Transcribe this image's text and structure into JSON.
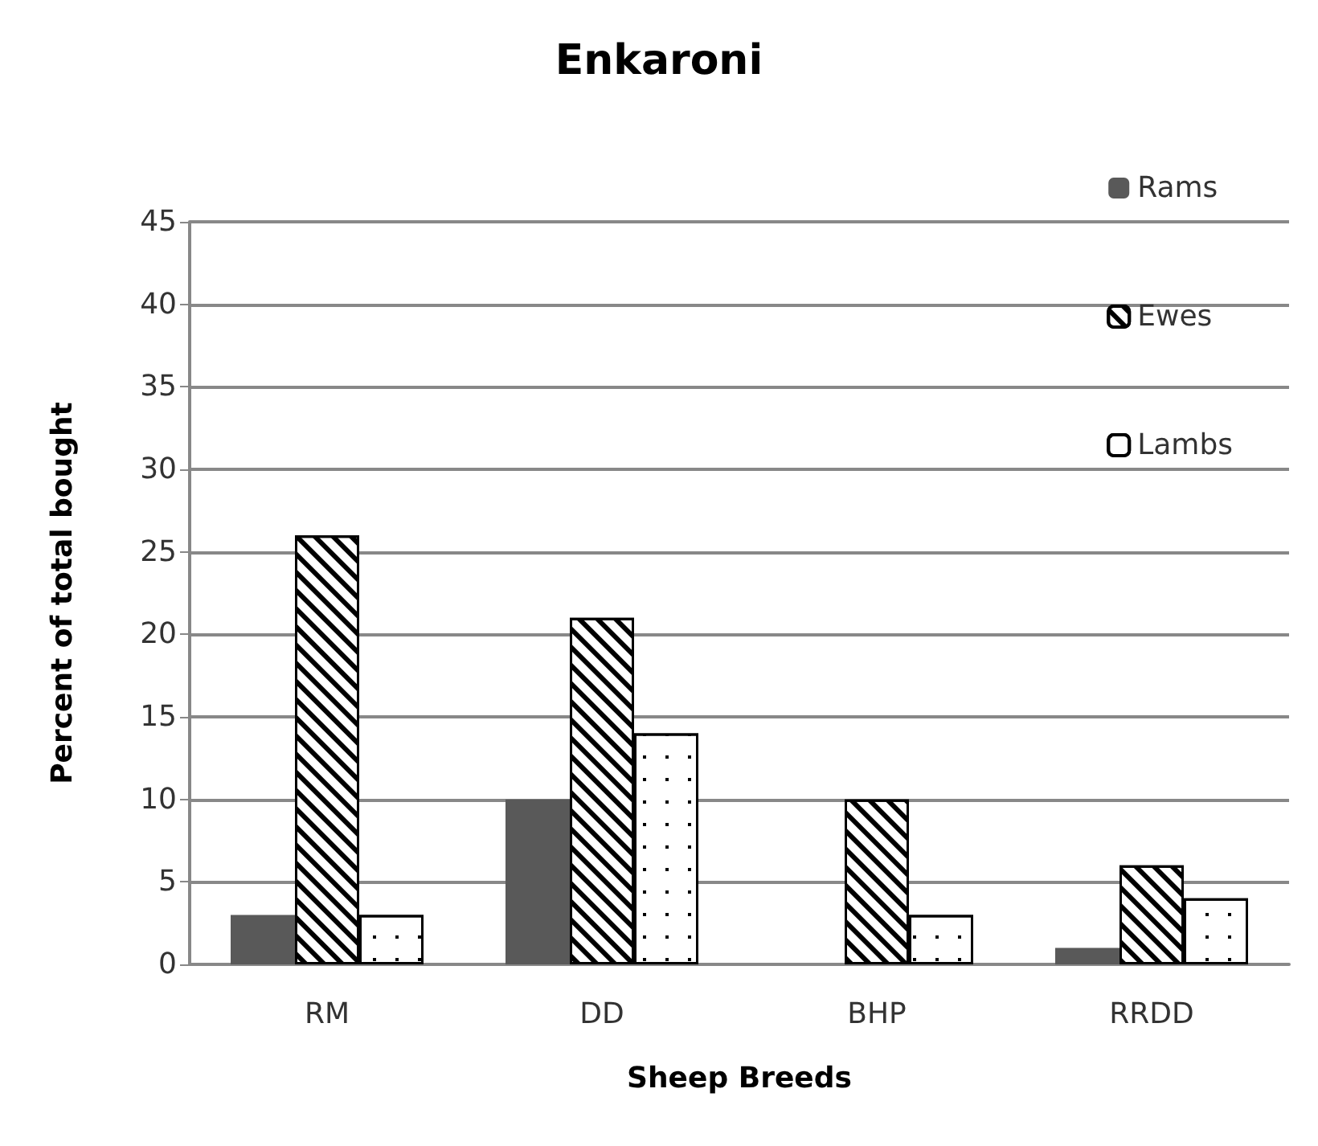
{
  "chart_data": {
    "type": "bar",
    "title": "Enkaroni",
    "xlabel": "Sheep Breeds",
    "ylabel": "Percent of total bought",
    "categories": [
      "RM",
      "DD",
      "BHP",
      "RRDD"
    ],
    "series": [
      {
        "name": "Rams",
        "color": "#595959",
        "values": [
          3,
          10,
          0,
          1
        ]
      },
      {
        "name": "Ewes",
        "color": "#ffffff",
        "values": [
          26,
          21,
          10,
          6
        ]
      },
      {
        "name": "Lambs",
        "color": "#ffffff",
        "values": [
          3,
          14,
          3,
          4
        ]
      }
    ],
    "ylim": [
      0,
      45
    ],
    "yticks": [
      0,
      5,
      10,
      15,
      20,
      25,
      30,
      35,
      40,
      45
    ],
    "grid": "y",
    "legend": "top right"
  }
}
